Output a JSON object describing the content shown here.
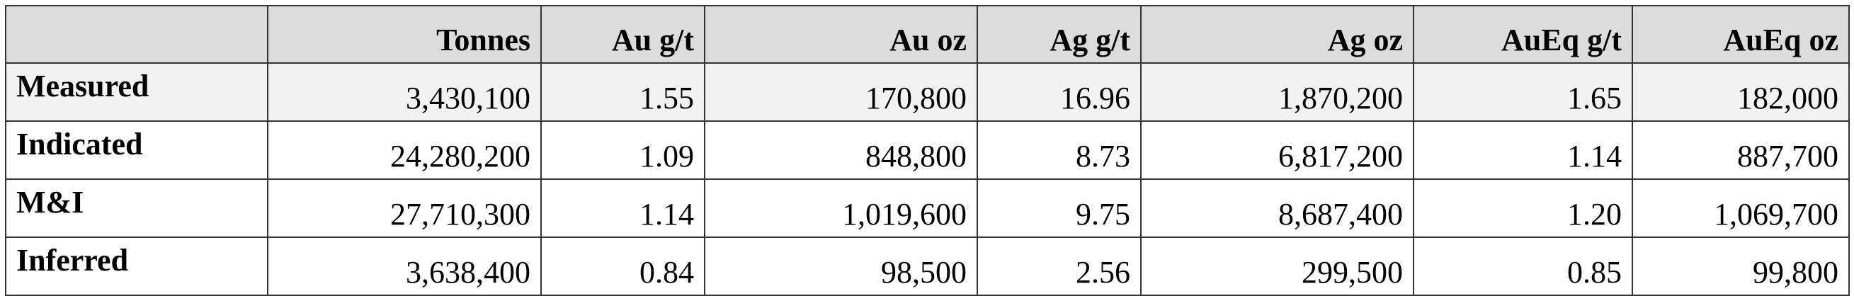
{
  "table": {
    "columns": [
      "Tonnes",
      "Au g/t",
      "Au oz",
      "Ag g/t",
      "Ag oz",
      "AuEq g/t",
      "AuEq oz"
    ],
    "rows": [
      {
        "label": "Measured",
        "cells": [
          "3,430,100",
          "1.55",
          "170,800",
          "16.96",
          "1,870,200",
          "1.65",
          "182,000"
        ]
      },
      {
        "label": "Indicated",
        "cells": [
          "24,280,200",
          "1.09",
          "848,800",
          "8.73",
          "6,817,200",
          "1.14",
          "887,700"
        ]
      },
      {
        "label": "M&I",
        "cells": [
          "27,710,300",
          "1.14",
          "1,019,600",
          "9.75",
          "8,687,400",
          "1.20",
          "1,069,700"
        ]
      },
      {
        "label": "Inferred",
        "cells": [
          "3,638,400",
          "0.84",
          "98,500",
          "2.56",
          "299,500",
          "0.85",
          "99,800"
        ]
      }
    ]
  }
}
